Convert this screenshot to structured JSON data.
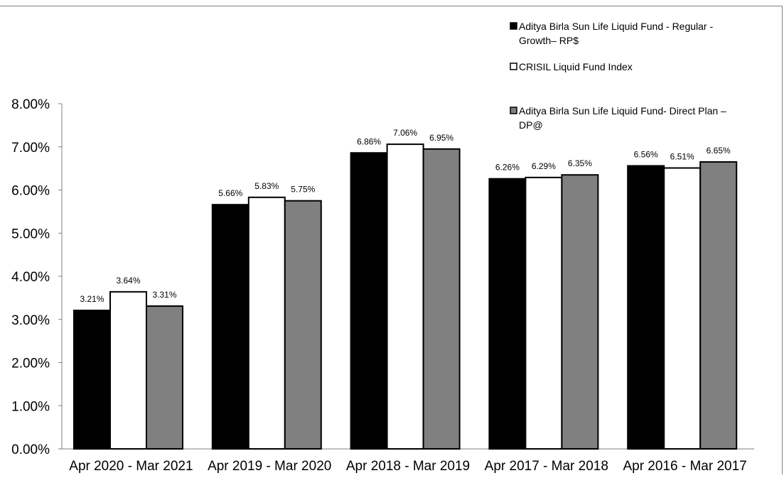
{
  "chart_data": {
    "type": "bar",
    "title": "",
    "xlabel": "",
    "ylabel": "",
    "ylim": [
      0,
      8
    ],
    "y_ticks": [
      "0.00%",
      "1.00%",
      "2.00%",
      "3.00%",
      "4.00%",
      "5.00%",
      "6.00%",
      "7.00%",
      "8.00%"
    ],
    "y_tick_values": [
      0,
      1,
      2,
      3,
      4,
      5,
      6,
      7,
      8
    ],
    "grid": false,
    "legend_position": "top-right",
    "categories": [
      "Apr 2020 - Mar 2021",
      "Apr 2019 - Mar 2020",
      "Apr 2018 - Mar 2019",
      "Apr 2017 - Mar 2018",
      "Apr 2016 - Mar 2017"
    ],
    "series": [
      {
        "name": "Aditya Birla Sun Life Liquid Fund - Regular - Growth– RP$",
        "legend_lines": [
          "Aditya Birla Sun Life Liquid Fund - Regular -",
          "Growth– RP$"
        ],
        "color": "#000000",
        "stroke": "#000000",
        "values": [
          3.21,
          5.66,
          6.86,
          6.26,
          6.56
        ],
        "labels": [
          "3.21%",
          "5.66%",
          "6.86%",
          "6.26%",
          "6.56%"
        ]
      },
      {
        "name": "CRISIL Liquid Fund Index",
        "legend_lines": [
          "CRISIL Liquid Fund Index"
        ],
        "color": "#ffffff",
        "stroke": "#000000",
        "values": [
          3.64,
          5.83,
          7.06,
          6.29,
          6.51
        ],
        "labels": [
          "3.64%",
          "5.83%",
          "7.06%",
          "6.29%",
          "6.51%"
        ]
      },
      {
        "name": "Aditya Birla Sun Life Liquid Fund- Direct Plan – DP@",
        "legend_lines": [
          "Aditya Birla Sun Life Liquid Fund- Direct Plan –",
          "DP@"
        ],
        "color": "#808080",
        "stroke": "#000000",
        "values": [
          3.31,
          5.75,
          6.95,
          6.35,
          6.65
        ],
        "labels": [
          "3.31%",
          "5.75%",
          "6.95%",
          "6.35%",
          "6.65%"
        ]
      }
    ]
  }
}
